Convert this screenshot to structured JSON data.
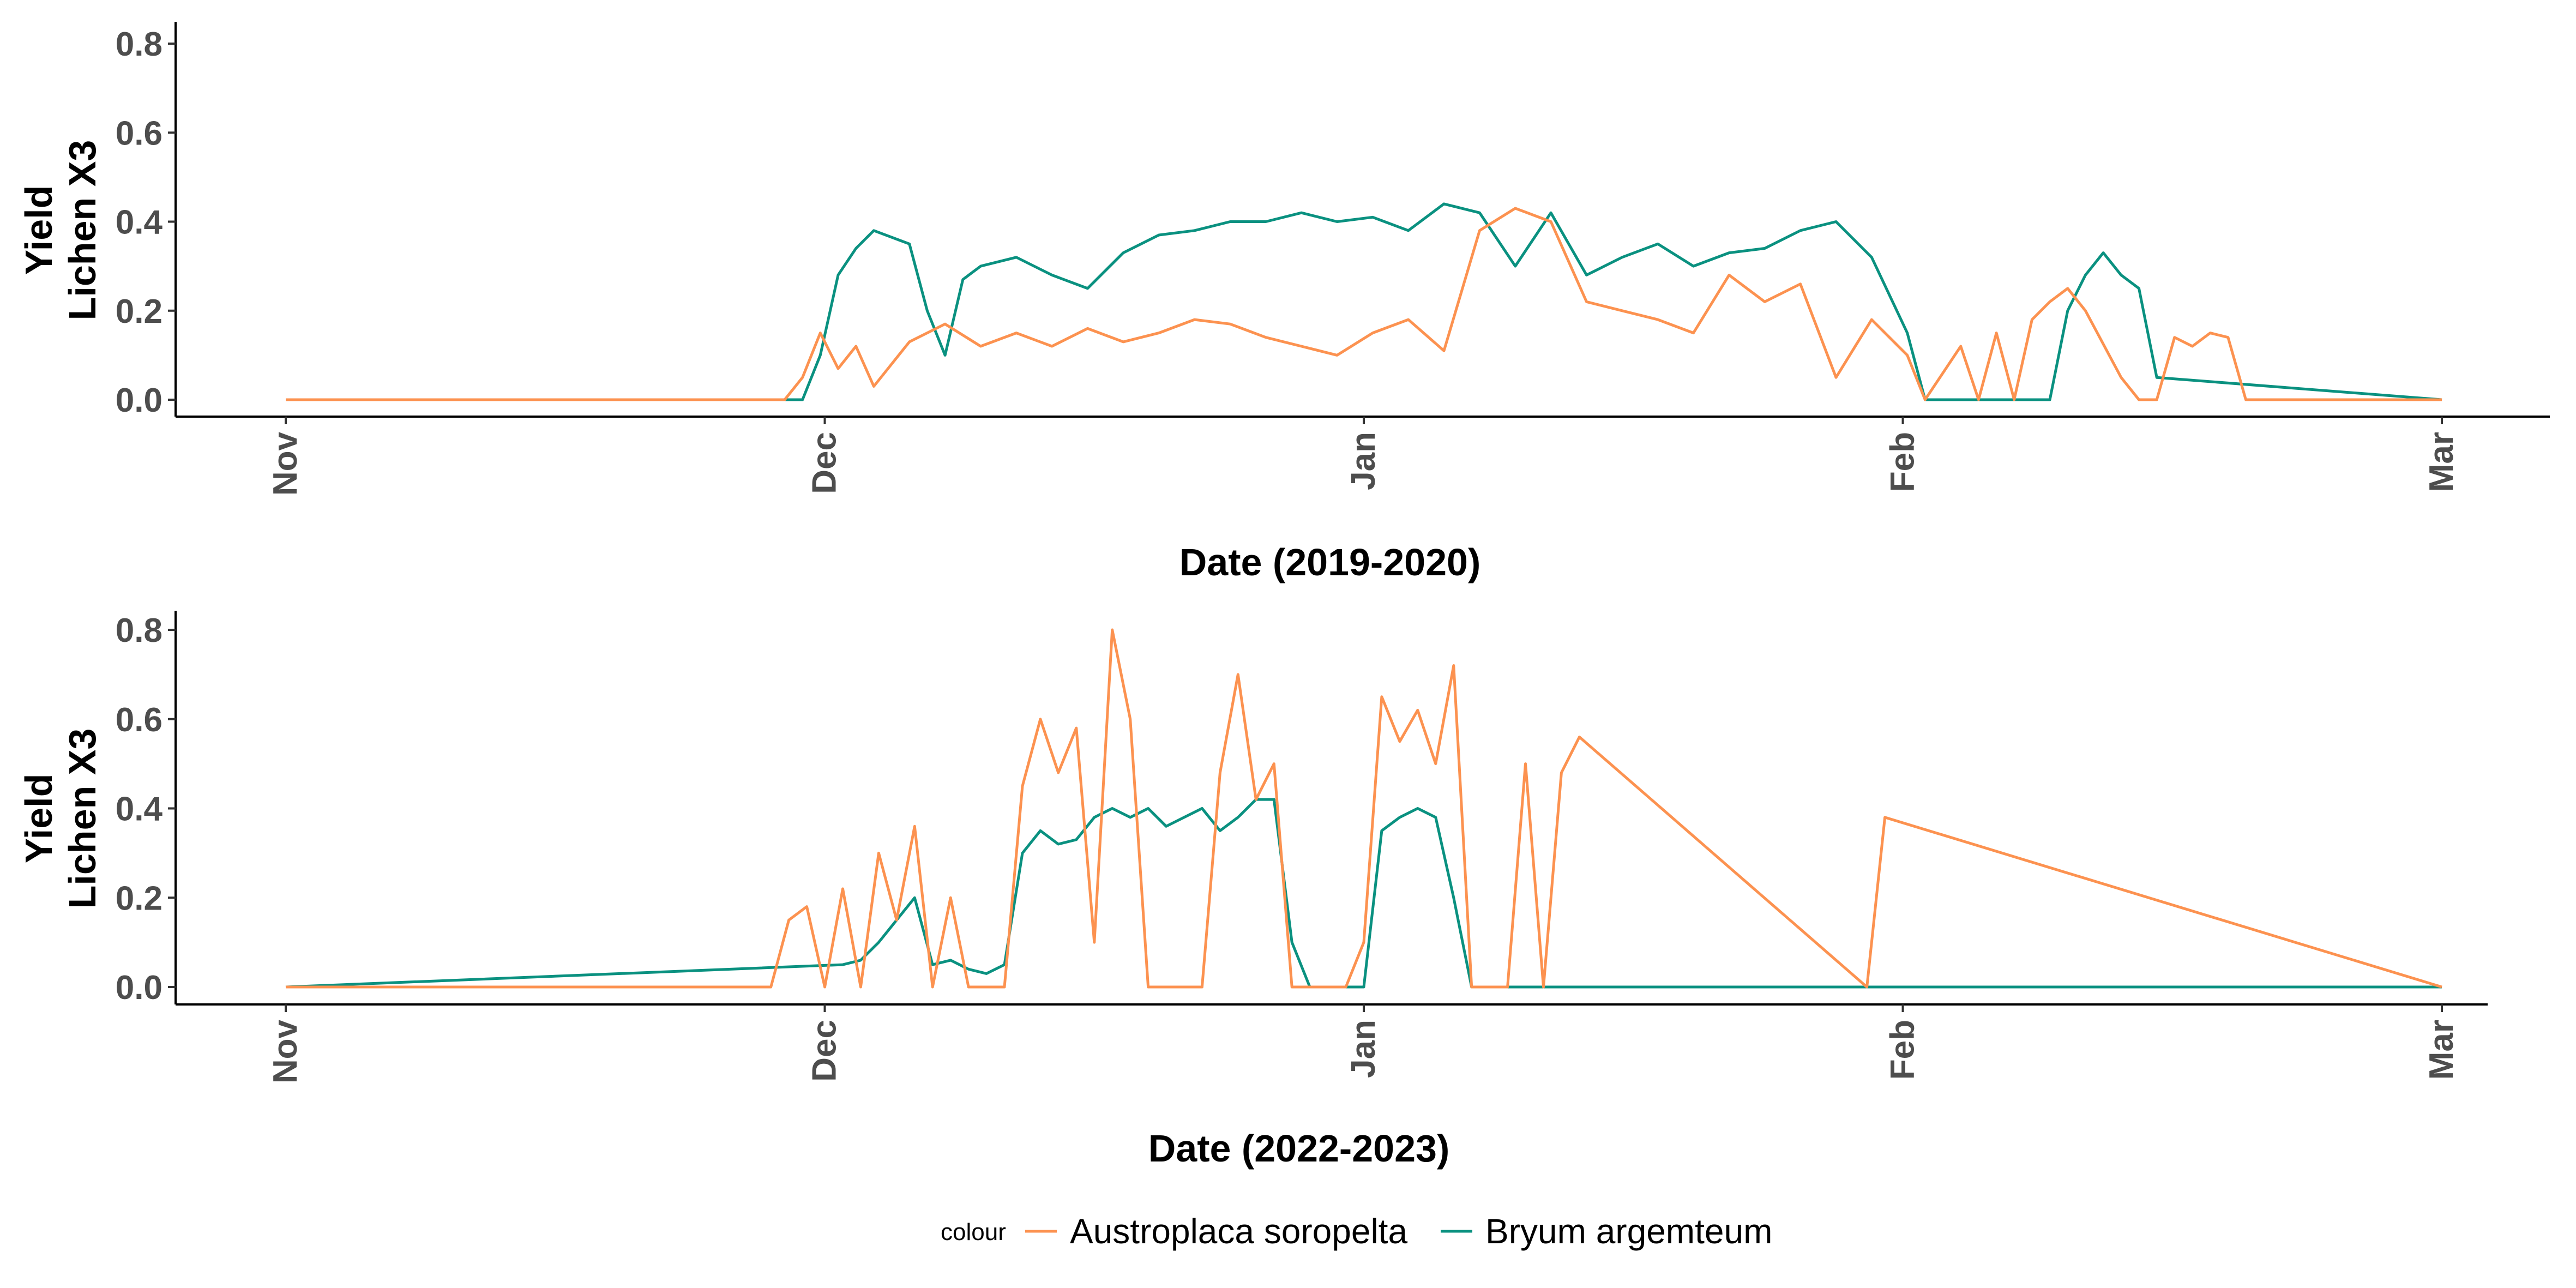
{
  "legend": {
    "title": "colour",
    "items": [
      {
        "label": "Austroplaca soropelta",
        "color": "#fc9250"
      },
      {
        "label": "Bryum argemteum",
        "color": "#0a9180"
      }
    ]
  },
  "chart_data": [
    {
      "type": "line",
      "xlabel": "Date (2019-2020)",
      "ylabel_lines": [
        "Yield",
        "Lichen X3"
      ],
      "ylim": [
        0,
        0.8
      ],
      "yticks": [
        "0.0",
        "0.2",
        "0.4",
        "0.6",
        "0.8"
      ],
      "xlim": [
        "2019-11-01",
        "2020-03-01"
      ],
      "xticks": [
        "Nov",
        "Dec",
        "Jan",
        "Feb",
        "Mar"
      ],
      "grid": false,
      "legend_position": "bottom",
      "series": [
        {
          "name": "Austroplaca soropelta",
          "color": "#fc9250",
          "x": [
            "2019-11-01",
            "2019-11-29",
            "2019-11-30",
            "2019-12-01",
            "2019-12-02",
            "2019-12-03",
            "2019-12-04",
            "2019-12-06",
            "2019-12-08",
            "2019-12-10",
            "2019-12-12",
            "2019-12-14",
            "2019-12-16",
            "2019-12-18",
            "2019-12-20",
            "2019-12-22",
            "2019-12-24",
            "2019-12-26",
            "2019-12-28",
            "2019-12-30",
            "2020-01-01",
            "2020-01-03",
            "2020-01-05",
            "2020-01-07",
            "2020-01-09",
            "2020-01-11",
            "2020-01-13",
            "2020-01-15",
            "2020-01-17",
            "2020-01-19",
            "2020-01-21",
            "2020-01-23",
            "2020-01-25",
            "2020-01-27",
            "2020-01-29",
            "2020-01-31",
            "2020-02-01",
            "2020-02-03",
            "2020-02-04",
            "2020-02-05",
            "2020-02-06",
            "2020-02-07",
            "2020-02-08",
            "2020-02-09",
            "2020-02-10",
            "2020-02-12",
            "2020-02-13",
            "2020-02-14",
            "2020-02-15",
            "2020-02-16",
            "2020-02-17",
            "2020-02-18",
            "2020-02-19",
            "2020-03-01"
          ],
          "values": [
            0,
            0,
            0.05,
            0.15,
            0.07,
            0.12,
            0.03,
            0.13,
            0.17,
            0.12,
            0.15,
            0.12,
            0.16,
            0.13,
            0.15,
            0.18,
            0.17,
            0.14,
            0.12,
            0.1,
            0.15,
            0.18,
            0.11,
            0.38,
            0.43,
            0.4,
            0.22,
            0.2,
            0.18,
            0.15,
            0.28,
            0.22,
            0.26,
            0.05,
            0.18,
            0.1,
            0,
            0.12,
            0,
            0.15,
            0,
            0.18,
            0.22,
            0.25,
            0.2,
            0.05,
            0,
            0,
            0.14,
            0.12,
            0.15,
            0.14,
            0,
            0
          ]
        },
        {
          "name": "Bryum argemteum",
          "color": "#0a9180",
          "x": [
            "2019-11-01",
            "2019-11-30",
            "2019-12-01",
            "2019-12-02",
            "2019-12-03",
            "2019-12-04",
            "2019-12-06",
            "2019-12-07",
            "2019-12-08",
            "2019-12-09",
            "2019-12-10",
            "2019-12-12",
            "2019-12-14",
            "2019-12-16",
            "2019-12-18",
            "2019-12-20",
            "2019-12-22",
            "2019-12-24",
            "2019-12-26",
            "2019-12-28",
            "2019-12-30",
            "2020-01-01",
            "2020-01-03",
            "2020-01-05",
            "2020-01-07",
            "2020-01-09",
            "2020-01-11",
            "2020-01-13",
            "2020-01-15",
            "2020-01-17",
            "2020-01-19",
            "2020-01-21",
            "2020-01-23",
            "2020-01-25",
            "2020-01-27",
            "2020-01-29",
            "2020-01-31",
            "2020-02-01",
            "2020-02-08",
            "2020-02-09",
            "2020-02-10",
            "2020-02-11",
            "2020-02-12",
            "2020-02-13",
            "2020-02-14",
            "2020-03-01"
          ],
          "values": [
            0,
            0,
            0.1,
            0.28,
            0.34,
            0.38,
            0.35,
            0.2,
            0.1,
            0.27,
            0.3,
            0.32,
            0.28,
            0.25,
            0.33,
            0.37,
            0.38,
            0.4,
            0.4,
            0.42,
            0.4,
            0.41,
            0.38,
            0.44,
            0.42,
            0.3,
            0.42,
            0.28,
            0.32,
            0.35,
            0.3,
            0.33,
            0.34,
            0.38,
            0.4,
            0.32,
            0.15,
            0,
            0,
            0.2,
            0.28,
            0.33,
            0.28,
            0.25,
            0.05,
            0
          ]
        }
      ]
    },
    {
      "type": "line",
      "xlabel": "Date (2022-2023)",
      "ylabel_lines": [
        "Yield",
        "Lichen X3"
      ],
      "ylim": [
        0,
        0.8
      ],
      "yticks": [
        "0.0",
        "0.2",
        "0.4",
        "0.6",
        "0.8"
      ],
      "xlim": [
        "2022-11-01",
        "2023-03-01"
      ],
      "xticks": [
        "Nov",
        "Dec",
        "Jan",
        "Feb",
        "Mar"
      ],
      "grid": false,
      "legend_position": "bottom",
      "series": [
        {
          "name": "Austroplaca soropelta",
          "color": "#fc9250",
          "x": [
            "2022-11-01",
            "2022-11-28",
            "2022-11-29",
            "2022-11-30",
            "2022-12-01",
            "2022-12-02",
            "2022-12-03",
            "2022-12-04",
            "2022-12-05",
            "2022-12-06",
            "2022-12-07",
            "2022-12-08",
            "2022-12-09",
            "2022-12-10",
            "2022-12-11",
            "2022-12-12",
            "2022-12-13",
            "2022-12-14",
            "2022-12-15",
            "2022-12-16",
            "2022-12-17",
            "2022-12-18",
            "2022-12-19",
            "2022-12-20",
            "2022-12-21",
            "2022-12-22",
            "2022-12-23",
            "2022-12-24",
            "2022-12-25",
            "2022-12-26",
            "2022-12-27",
            "2022-12-28",
            "2022-12-29",
            "2022-12-30",
            "2022-12-31",
            "2023-01-01",
            "2023-01-02",
            "2023-01-03",
            "2023-01-04",
            "2023-01-05",
            "2023-01-06",
            "2023-01-07",
            "2023-01-08",
            "2023-01-09",
            "2023-01-10",
            "2023-01-11",
            "2023-01-12",
            "2023-01-28",
            "2023-01-29",
            "2023-03-01"
          ],
          "values": [
            0,
            0,
            0.15,
            0.18,
            0,
            0.22,
            0,
            0.3,
            0.15,
            0.36,
            0,
            0.2,
            0,
            0,
            0,
            0.45,
            0.6,
            0.48,
            0.58,
            0.1,
            0.8,
            0.6,
            0,
            0,
            0,
            0,
            0.48,
            0.7,
            0.42,
            0.5,
            0,
            0,
            0,
            0,
            0.1,
            0.65,
            0.55,
            0.62,
            0.5,
            0.72,
            0,
            0,
            0,
            0.5,
            0,
            0.48,
            0.56,
            0,
            0.38,
            0
          ]
        },
        {
          "name": "Bryum argemteum",
          "color": "#0a9180",
          "x": [
            "2022-11-01",
            "2022-12-02",
            "2022-12-03",
            "2022-12-04",
            "2022-12-05",
            "2022-12-06",
            "2022-12-07",
            "2022-12-08",
            "2022-12-09",
            "2022-12-10",
            "2022-12-11",
            "2022-12-12",
            "2022-12-13",
            "2022-12-14",
            "2022-12-15",
            "2022-12-16",
            "2022-12-17",
            "2022-12-18",
            "2022-12-19",
            "2022-12-20",
            "2022-12-21",
            "2022-12-22",
            "2022-12-23",
            "2022-12-24",
            "2022-12-25",
            "2022-12-26",
            "2022-12-27",
            "2022-12-28",
            "2022-12-29",
            "2022-12-30",
            "2022-12-31",
            "2023-01-01",
            "2023-01-02",
            "2023-01-03",
            "2023-01-04",
            "2023-01-05",
            "2023-01-06",
            "2023-03-01"
          ],
          "values": [
            0,
            0.05,
            0.06,
            0.1,
            0.15,
            0.2,
            0.05,
            0.06,
            0.04,
            0.03,
            0.05,
            0.3,
            0.35,
            0.32,
            0.33,
            0.38,
            0.4,
            0.38,
            0.4,
            0.36,
            0.38,
            0.4,
            0.35,
            0.38,
            0.42,
            0.42,
            0.1,
            0,
            0,
            0,
            0,
            0.35,
            0.38,
            0.4,
            0.38,
            0.2,
            0,
            0
          ]
        }
      ]
    }
  ]
}
